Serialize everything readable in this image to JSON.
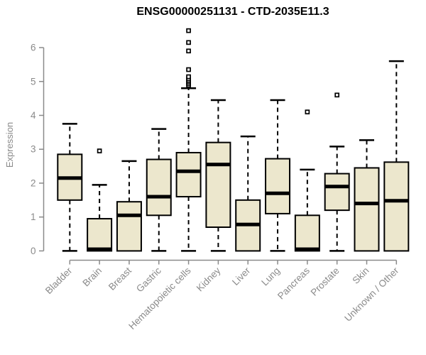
{
  "chart_data": {
    "type": "boxplot",
    "title": "ENSG00000251131 - CTD-2035E11.3",
    "ylabel": "Expression",
    "xlabel": "",
    "ylim": [
      0,
      6.6
    ],
    "y_ticks": [
      0,
      1,
      2,
      3,
      4,
      5,
      6
    ],
    "grid": false,
    "legend": "none",
    "categories": [
      "Bladder",
      "Brain",
      "Breast",
      "Gastric",
      "Hematopoietic cells",
      "Kidney",
      "Liver",
      "Lung",
      "Pancreas",
      "Prostate",
      "Skin",
      "Unknown / Other"
    ],
    "series": [
      {
        "name": "Bladder",
        "min": 0,
        "q1": 1.5,
        "median": 2.15,
        "q3": 2.85,
        "max": 3.75,
        "outliers": []
      },
      {
        "name": "Brain",
        "min": 0,
        "q1": 0.0,
        "median": 0.05,
        "q3": 0.95,
        "max": 1.95,
        "outliers": [
          2.95
        ]
      },
      {
        "name": "Breast",
        "min": 0,
        "q1": 0.0,
        "median": 1.05,
        "q3": 1.45,
        "max": 2.65,
        "outliers": []
      },
      {
        "name": "Gastric",
        "min": 0,
        "q1": 1.05,
        "median": 1.6,
        "q3": 2.7,
        "max": 3.6,
        "outliers": []
      },
      {
        "name": "Hematopoietic cells",
        "min": 0,
        "q1": 1.6,
        "median": 2.35,
        "q3": 2.9,
        "max": 4.8,
        "outliers": [
          4.88,
          4.93,
          4.98,
          5.03,
          5.08,
          5.14,
          5.35,
          5.9,
          6.15,
          6.5
        ]
      },
      {
        "name": "Kidney",
        "min": 0,
        "q1": 0.7,
        "median": 2.55,
        "q3": 3.2,
        "max": 4.45,
        "outliers": []
      },
      {
        "name": "Liver",
        "min": 0,
        "q1": 0.0,
        "median": 0.78,
        "q3": 1.5,
        "max": 3.38,
        "outliers": []
      },
      {
        "name": "Lung",
        "min": 0,
        "q1": 1.1,
        "median": 1.7,
        "q3": 2.72,
        "max": 4.45,
        "outliers": []
      },
      {
        "name": "Pancreas",
        "min": 0,
        "q1": 0.0,
        "median": 0.05,
        "q3": 1.05,
        "max": 2.4,
        "outliers": [
          4.1
        ]
      },
      {
        "name": "Prostate",
        "min": 0,
        "q1": 1.2,
        "median": 1.9,
        "q3": 2.28,
        "max": 3.08,
        "outliers": [
          4.6
        ]
      },
      {
        "name": "Skin",
        "min": 0,
        "q1": 0.0,
        "median": 1.4,
        "q3": 2.45,
        "max": 3.27,
        "outliers": []
      },
      {
        "name": "Unknown / Other",
        "min": 0,
        "q1": 0.0,
        "median": 1.48,
        "q3": 2.62,
        "max": 5.6,
        "outliers": []
      }
    ],
    "colors": {
      "box_fill": "#ECE7CD",
      "box_border": "#000000",
      "median": "#000000",
      "whisker": "#000000",
      "outlier": "#000000",
      "axis": "#8a8a8a",
      "tick_label": "#8a8a8a",
      "title": "#000000",
      "background": "#ffffff"
    }
  }
}
